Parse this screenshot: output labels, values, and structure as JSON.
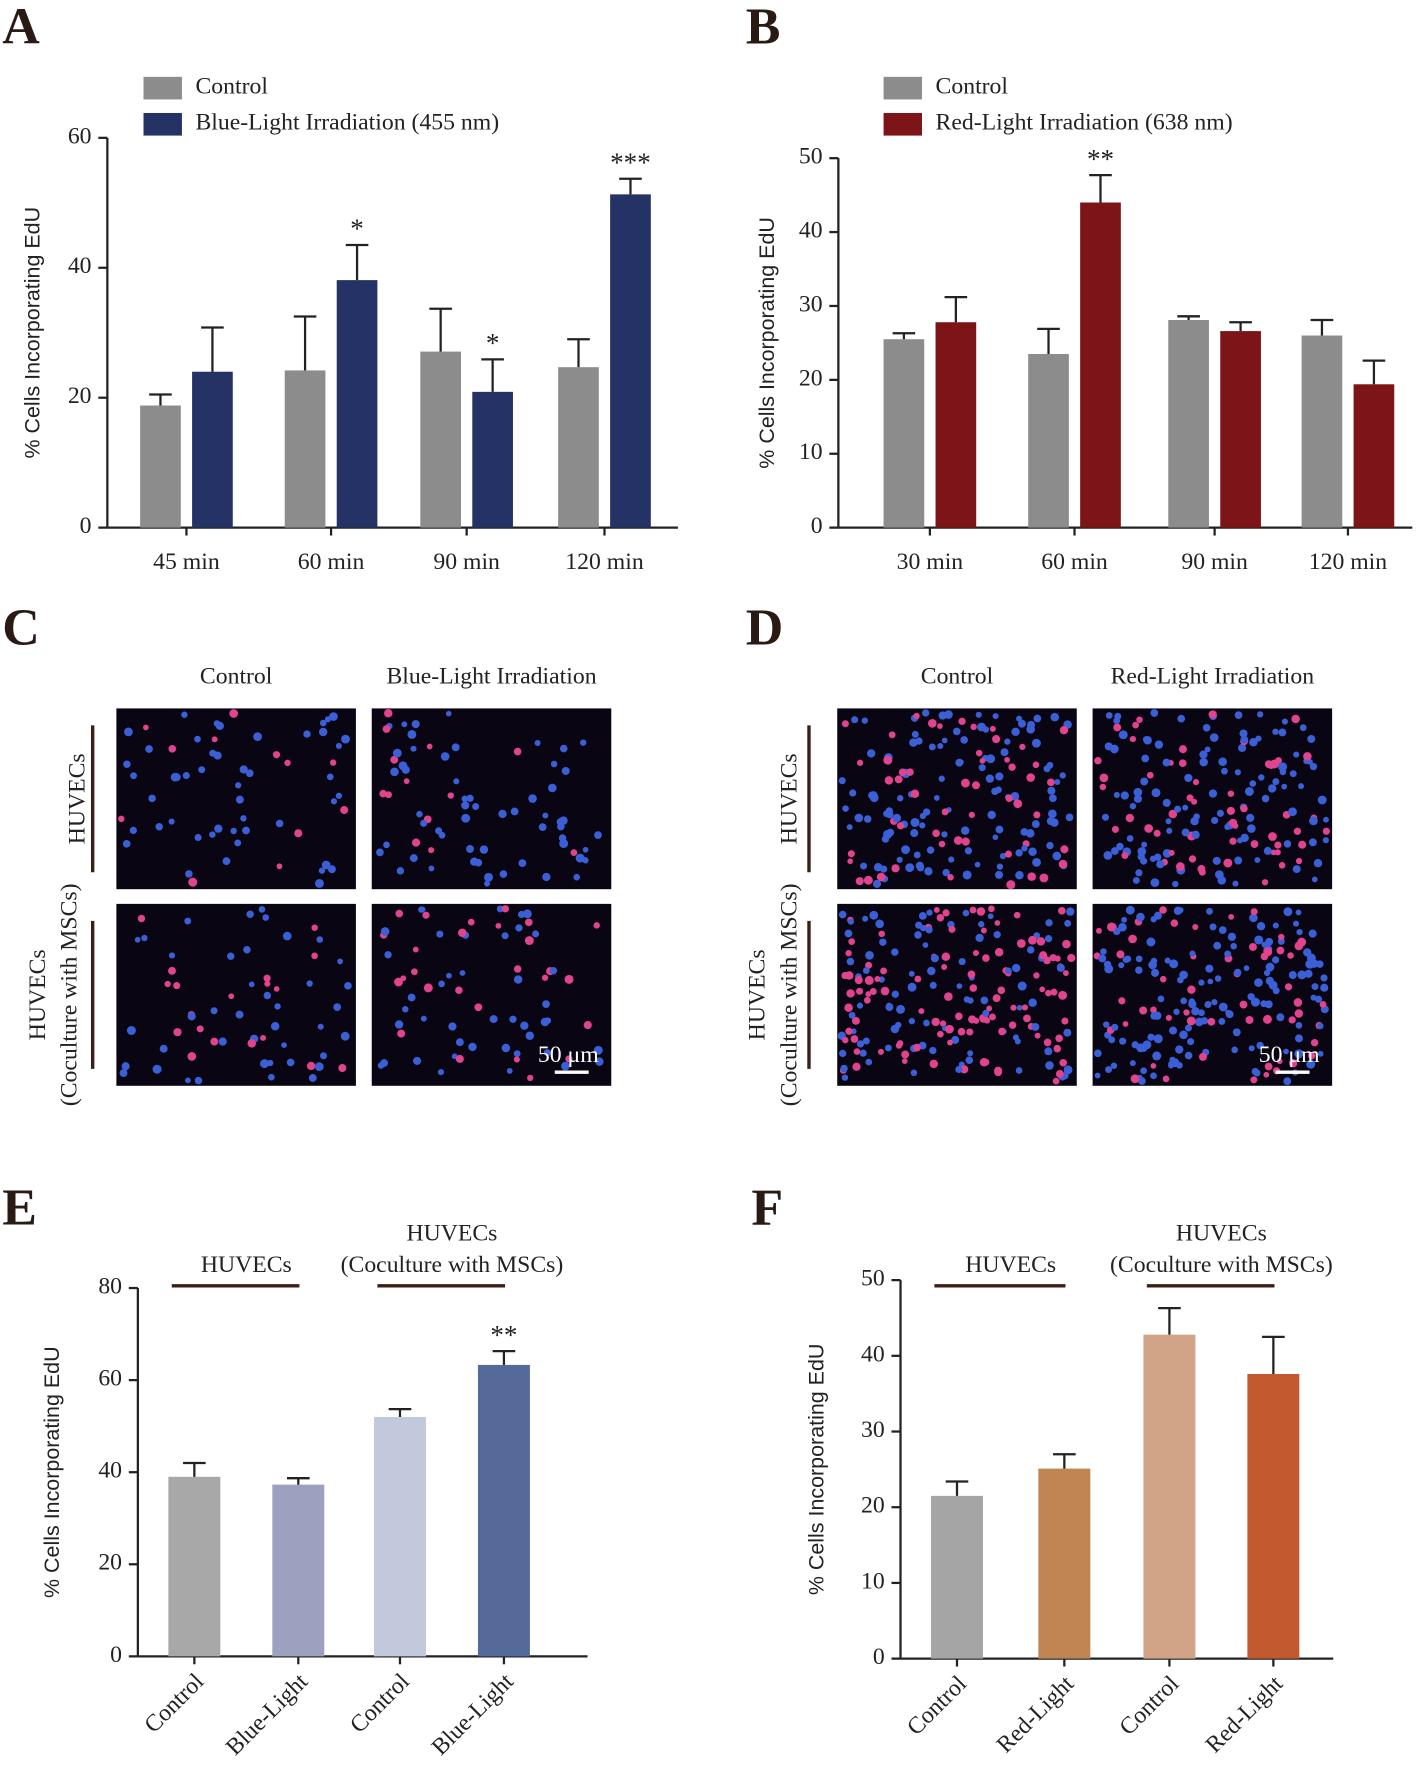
{
  "chart_data": [
    {
      "type": "bar",
      "panel": "A",
      "ylabel": "% Cells Incorporating EdU",
      "categories": [
        "45 min",
        "60 min",
        "90 min",
        "120 min"
      ],
      "series": [
        {
          "name": "Control",
          "color": "#8c8c8c",
          "values": [
            18.8,
            24.2,
            27.1,
            24.7
          ],
          "errors": [
            1.7,
            8.3,
            6.6,
            4.3
          ],
          "annotations": [
            null,
            null,
            null,
            null
          ]
        },
        {
          "name": "Blue-Light Irradiation (455 nm)",
          "color": "#243265",
          "values": [
            24,
            38.1,
            20.9,
            51.3
          ],
          "errors": [
            6.8,
            5.4,
            5,
            2.4
          ],
          "annotations": [
            null,
            "*",
            "*",
            "***"
          ]
        }
      ],
      "ylim": [
        0,
        60
      ],
      "yticks": [
        0,
        20,
        40,
        60
      ]
    },
    {
      "type": "bar",
      "panel": "B",
      "ylabel": "% Cells Incorporating EdU",
      "categories": [
        "30 min",
        "60 min",
        "90 min",
        "120 min"
      ],
      "series": [
        {
          "name": "Control",
          "color": "#8c8c8c",
          "values": [
            25.5,
            23.5,
            28.1,
            26
          ],
          "errors": [
            0.8,
            3.4,
            0.5,
            2.1
          ],
          "annotations": [
            null,
            null,
            null,
            null
          ]
        },
        {
          "name": "Red-Light Irradiation (638 nm)",
          "color": "#7d1417",
          "values": [
            27.8,
            44,
            26.6,
            19.4
          ],
          "errors": [
            3.4,
            3.7,
            1.2,
            3.2
          ],
          "annotations": [
            null,
            "**",
            null,
            null
          ]
        }
      ],
      "ylim": [
        0,
        50
      ],
      "yticks": [
        0,
        10,
        20,
        30,
        40,
        50
      ]
    },
    {
      "type": "bar",
      "panel": "E",
      "ylabel": "% Cells Incorporating EdU",
      "categories": [
        "Control",
        "Blue-Light",
        "Control",
        "Blue-Light"
      ],
      "values": [
        39,
        37.3,
        52,
        63.3
      ],
      "errors": [
        3,
        1.4,
        1.7,
        3
      ],
      "colors": [
        "#a8a8a8",
        "#9da0bf",
        "#c4c8dc",
        "#566a99"
      ],
      "annotations": [
        null,
        null,
        null,
        "**"
      ],
      "groups": [
        [
          "HUVECs"
        ],
        [
          "HUVECs",
          "(Coculture with MSCs)"
        ]
      ],
      "ylim": [
        0,
        80
      ],
      "yticks": [
        0,
        20,
        40,
        60,
        80
      ]
    },
    {
      "type": "bar",
      "panel": "F",
      "ylabel": "% Cells Incorporating EdU",
      "categories": [
        "Control",
        "Red-Light",
        "Control",
        "Red-Light"
      ],
      "values": [
        21.5,
        25.1,
        42.8,
        37.6
      ],
      "errors": [
        1.9,
        1.9,
        3.5,
        4.9
      ],
      "colors": [
        "#a5a5a5",
        "#c08552",
        "#d1a488",
        "#c3592f"
      ],
      "annotations": [
        null,
        null,
        null,
        null
      ],
      "groups": [
        [
          "HUVECs"
        ],
        [
          "HUVECs",
          "(Coculture with MSCs)"
        ]
      ],
      "ylim": [
        0,
        50
      ],
      "yticks": [
        0,
        10,
        20,
        30,
        40,
        50
      ]
    }
  ],
  "images": [
    {
      "panel": "C",
      "columns": [
        "Control",
        "Blue-Light Irradiation"
      ],
      "rows": [
        [
          "HUVECs"
        ],
        [
          "HUVECs",
          "(Coculture with MSCs)"
        ]
      ],
      "scale_bar": "50 μm"
    },
    {
      "panel": "D",
      "columns": [
        "Control",
        "Red-Light Irradiation"
      ],
      "rows": [
        [
          "HUVECs"
        ],
        [
          "HUVECs",
          "(Coculture with MSCs)"
        ]
      ],
      "scale_bar": "50 μm"
    }
  ]
}
